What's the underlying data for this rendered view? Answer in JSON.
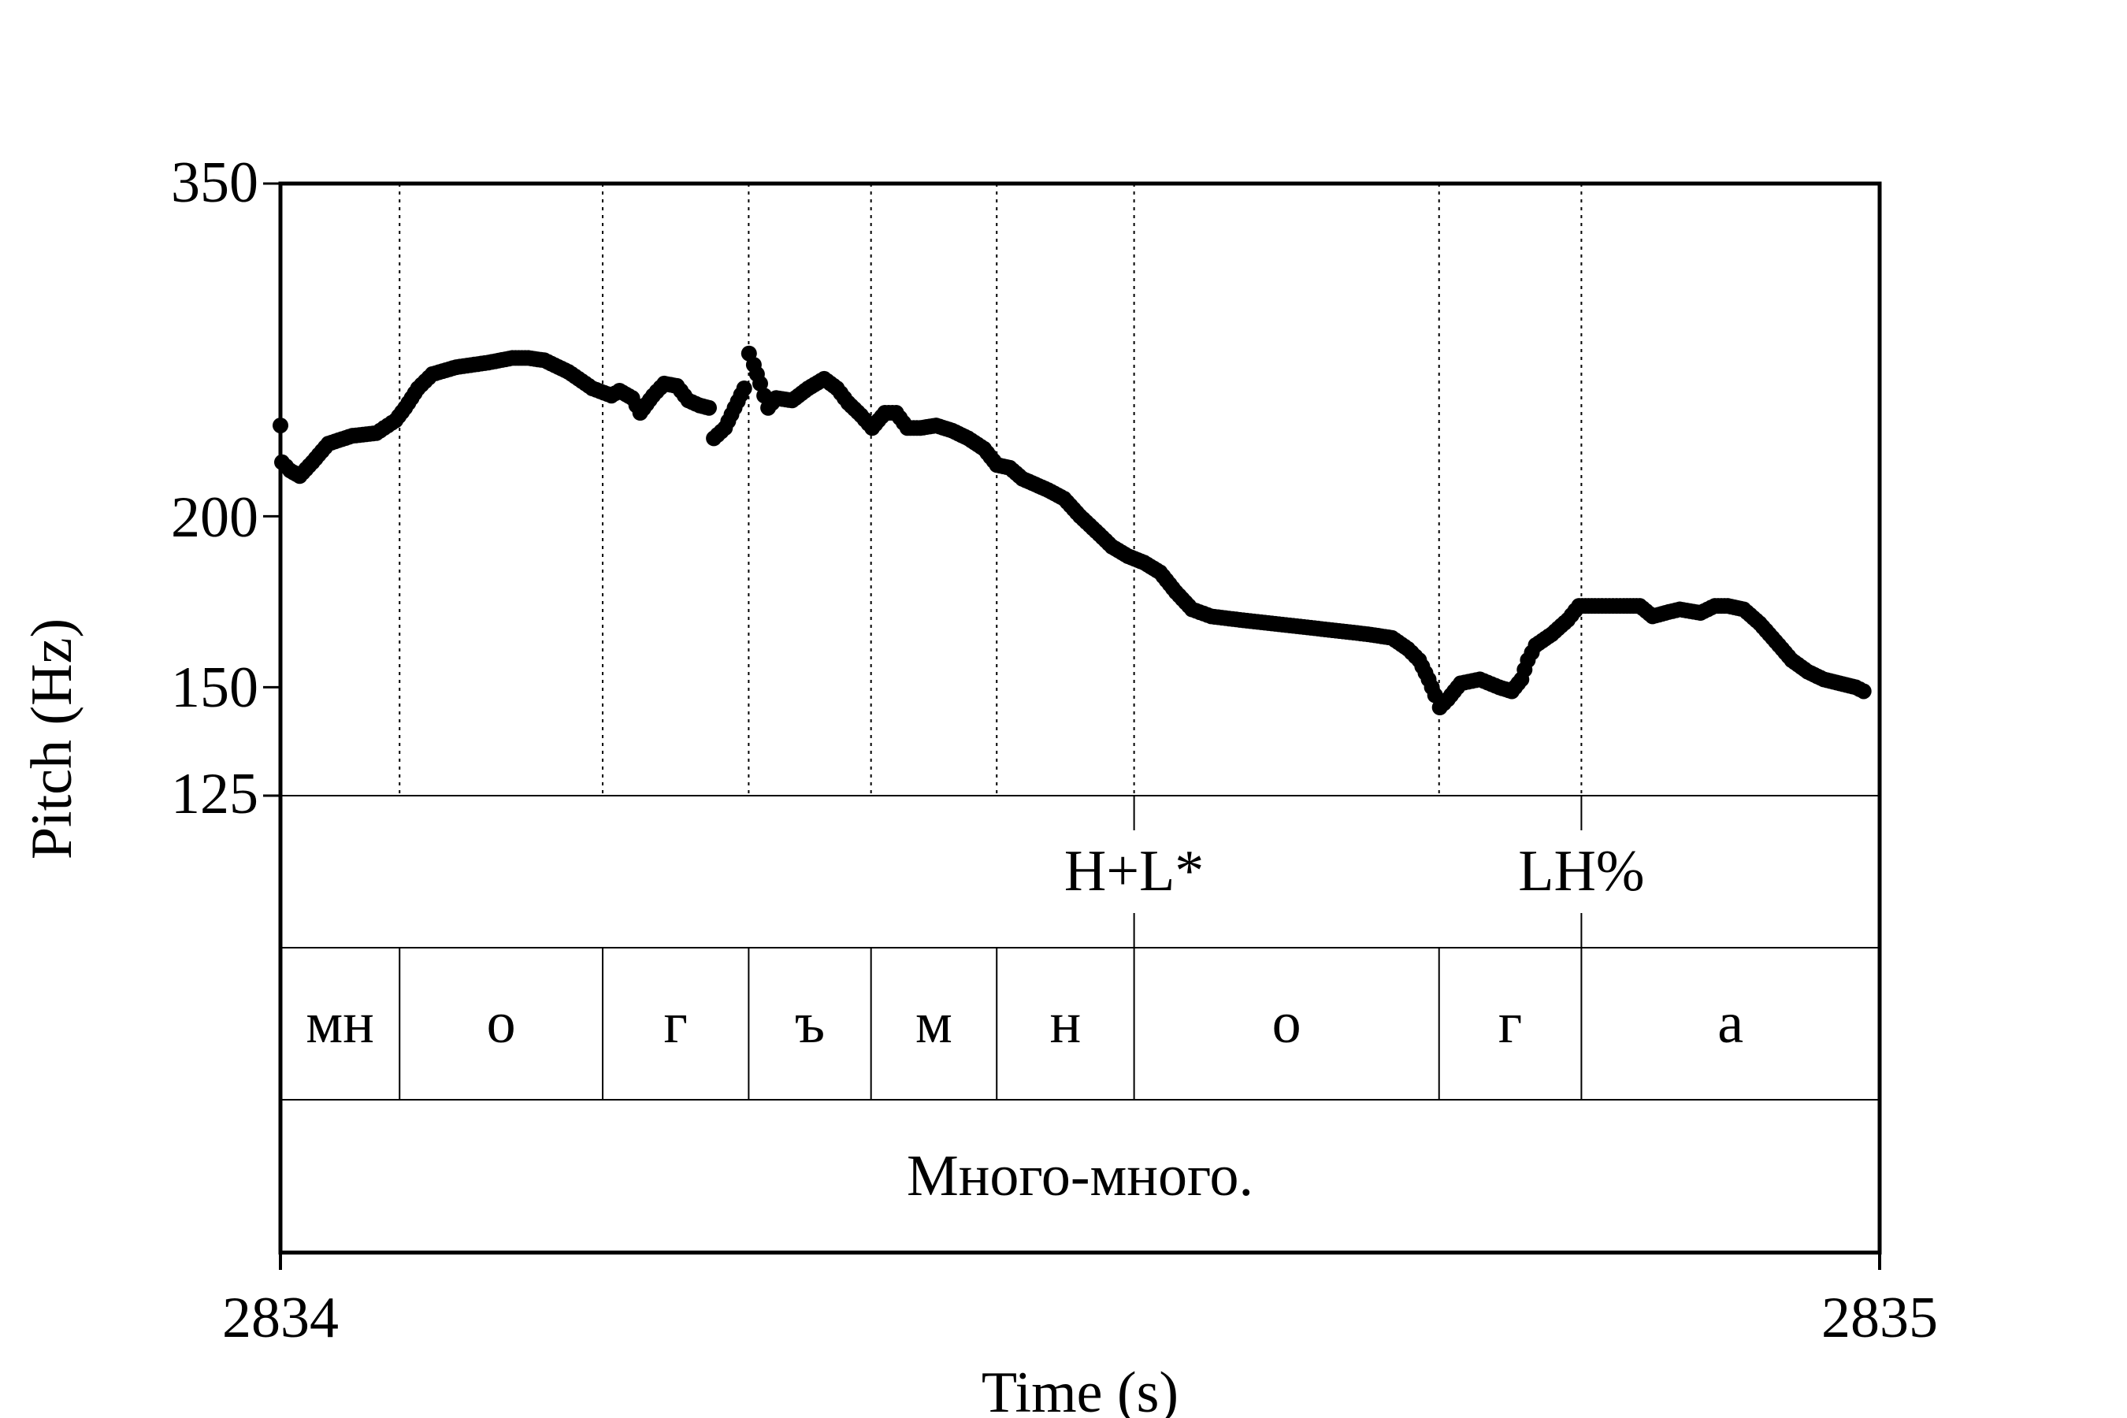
{
  "chart_data": {
    "type": "scatter",
    "ylabel": "Pitch (Hz)",
    "xlabel": "Time (s)",
    "xlim": [
      2834,
      2835
    ],
    "ylim": [
      125,
      350
    ],
    "y_scale": "log",
    "yticks": [
      125,
      150,
      200,
      350
    ],
    "xticks": [
      2834,
      2835
    ],
    "tick_labels": {
      "y350": "350",
      "y200": "200",
      "y150": "150",
      "y125": "125",
      "x2834": "2834",
      "x2835": "2835"
    },
    "boundaries": [
      2834.0745,
      2834.2015,
      2834.2928,
      2834.3693,
      2834.4479,
      2834.5338,
      2834.7245,
      2834.8135
    ],
    "tones": [
      {
        "time": 2834.5338,
        "label": "H+L*"
      },
      {
        "time": 2834.8135,
        "label": "LH%"
      }
    ],
    "segments": [
      {
        "start": 2834.0,
        "end": 2834.0745,
        "label": "мн"
      },
      {
        "start": 2834.0745,
        "end": 2834.2015,
        "label": "о"
      },
      {
        "start": 2834.2015,
        "end": 2834.2928,
        "label": "г"
      },
      {
        "start": 2834.2928,
        "end": 2834.3693,
        "label": "ъ"
      },
      {
        "start": 2834.3693,
        "end": 2834.4479,
        "label": "м"
      },
      {
        "start": 2834.4479,
        "end": 2834.5338,
        "label": "н"
      },
      {
        "start": 2834.5338,
        "end": 2834.7245,
        "label": "о"
      },
      {
        "start": 2834.7245,
        "end": 2834.8135,
        "label": "г"
      },
      {
        "start": 2834.8135,
        "end": 2835.0,
        "label": "а"
      }
    ],
    "sentence": "Много-много.",
    "pitch_anchors": [
      [
        2834.0,
        233
      ],
      [
        2834.001,
        219
      ],
      [
        2834.006,
        216
      ],
      [
        2834.012,
        214
      ],
      [
        2834.02,
        219
      ],
      [
        2834.03,
        226
      ],
      [
        2834.045,
        229
      ],
      [
        2834.06,
        230
      ],
      [
        2834.072,
        235
      ],
      [
        2834.078,
        240
      ],
      [
        2834.086,
        248
      ],
      [
        2834.095,
        254
      ],
      [
        2834.11,
        257
      ],
      [
        2834.13,
        259
      ],
      [
        2834.145,
        261
      ],
      [
        2834.155,
        261
      ],
      [
        2834.165,
        260
      ],
      [
        2834.18,
        255
      ],
      [
        2834.195,
        248
      ],
      [
        2834.207,
        245
      ],
      [
        2834.212,
        247
      ],
      [
        2834.22,
        244
      ],
      [
        2834.225,
        238
      ],
      [
        2834.233,
        245
      ],
      [
        2834.24,
        250
      ],
      [
        2834.248,
        249
      ],
      [
        2834.255,
        243
      ],
      [
        2834.262,
        241
      ],
      [
        2834.268,
        240
      ],
      [
        2834.271,
        228
      ],
      [
        2834.278,
        232
      ],
      [
        2834.284,
        240
      ],
      [
        2834.29,
        248
      ],
      [
        2834.293,
        263
      ],
      [
        2834.296,
        258
      ],
      [
        2834.3,
        250
      ],
      [
        2834.305,
        240
      ],
      [
        2834.31,
        244
      ],
      [
        2834.32,
        243
      ],
      [
        2834.33,
        248
      ],
      [
        2834.34,
        252
      ],
      [
        2834.348,
        248
      ],
      [
        2834.355,
        242
      ],
      [
        2834.363,
        237
      ],
      [
        2834.37,
        232
      ],
      [
        2834.378,
        238
      ],
      [
        2834.385,
        238
      ],
      [
        2834.392,
        232
      ],
      [
        2834.4,
        232
      ],
      [
        2834.41,
        233
      ],
      [
        2834.42,
        231
      ],
      [
        2834.43,
        228
      ],
      [
        2834.44,
        224
      ],
      [
        2834.448,
        218
      ],
      [
        2834.456,
        217
      ],
      [
        2834.464,
        213
      ],
      [
        2834.472,
        211
      ],
      [
        2834.48,
        209
      ],
      [
        2834.49,
        206
      ],
      [
        2834.5,
        200
      ],
      [
        2834.51,
        195
      ],
      [
        2834.52,
        190
      ],
      [
        2834.53,
        187
      ],
      [
        2834.54,
        185
      ],
      [
        2834.55,
        182
      ],
      [
        2834.56,
        176
      ],
      [
        2834.57,
        171
      ],
      [
        2834.582,
        169
      ],
      [
        2834.6,
        168
      ],
      [
        2834.62,
        167
      ],
      [
        2834.64,
        166
      ],
      [
        2834.66,
        165
      ],
      [
        2834.68,
        164
      ],
      [
        2834.695,
        163
      ],
      [
        2834.705,
        160
      ],
      [
        2834.712,
        157
      ],
      [
        2834.718,
        152
      ],
      [
        2834.722,
        148
      ],
      [
        2834.725,
        145
      ],
      [
        2834.73,
        147
      ],
      [
        2834.738,
        151
      ],
      [
        2834.75,
        152
      ],
      [
        2834.762,
        150
      ],
      [
        2834.77,
        149
      ],
      [
        2834.776,
        152
      ],
      [
        2834.78,
        157
      ],
      [
        2834.785,
        161
      ],
      [
        2834.795,
        164
      ],
      [
        2834.805,
        168
      ],
      [
        2834.812,
        172
      ],
      [
        2834.822,
        172
      ],
      [
        2834.84,
        172
      ],
      [
        2834.85,
        172
      ],
      [
        2834.858,
        169
      ],
      [
        2834.866,
        170
      ],
      [
        2834.875,
        171
      ],
      [
        2834.888,
        170
      ],
      [
        2834.897,
        172
      ],
      [
        2834.905,
        172
      ],
      [
        2834.915,
        171
      ],
      [
        2834.925,
        167
      ],
      [
        2834.935,
        162
      ],
      [
        2834.945,
        157
      ],
      [
        2834.955,
        154
      ],
      [
        2834.965,
        152
      ],
      [
        2834.975,
        151
      ],
      [
        2834.985,
        150
      ],
      [
        2834.99,
        149
      ]
    ]
  }
}
